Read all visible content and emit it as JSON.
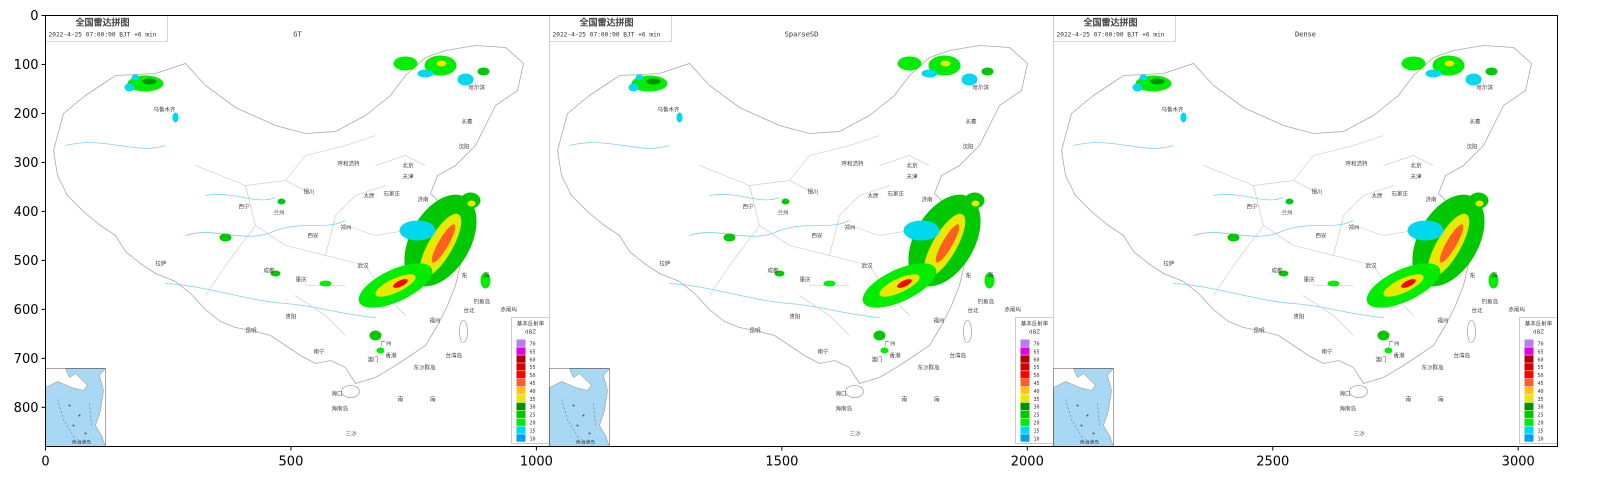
{
  "axes": {
    "x_ticks": [
      "0",
      "500",
      "1000",
      "1500",
      "2000",
      "2500",
      "3000"
    ],
    "y_ticks": [
      "0",
      "100",
      "200",
      "300",
      "400",
      "500",
      "600",
      "700",
      "800"
    ]
  },
  "shared": {
    "map_title": "全国雷达拼图",
    "timestamp": "2022-4-25 07:00:00 BJT +6 min",
    "legend_title_line1": "基本反射率",
    "legend_title_line2": "dBZ",
    "legend_values": [
      "70",
      "65",
      "60",
      "55",
      "50",
      "45",
      "40",
      "35",
      "30",
      "25",
      "20",
      "15",
      "10"
    ],
    "legend_colors": [
      "#b57ef0",
      "#e000e0",
      "#b00000",
      "#d40000",
      "#ff0000",
      "#ff6020",
      "#ffc800",
      "#e8e800",
      "#009000",
      "#00c800",
      "#00ec00",
      "#00d8f0",
      "#00a0f0"
    ],
    "inset_label": "南海诸岛",
    "place_labels": {
      "wulumuqi": "乌鲁木齐",
      "haerbin": "哈尔滨",
      "changchun": "长春",
      "shenyang": "沈阳",
      "huhehaote": "呼和浩特",
      "beijing": "北京",
      "tianjin": "天津",
      "shijiazhuang": "石家庄",
      "taiyuan": "太原",
      "yinchuan": "银川",
      "xining": "西宁",
      "lanzhou": "兰州",
      "jinan": "济南",
      "xian": "西安",
      "zhengzhou": "郑州",
      "lasa": "拉萨",
      "chengdu": "成都",
      "chongqing": "重庆",
      "wuhan": "武汉",
      "guiyang": "贵阳",
      "kunming": "昆明",
      "nanning": "南宁",
      "fuzhou": "福州",
      "taibei": "台北",
      "guangzhou": "广州",
      "aomen": "澳门",
      "xianggang": "香港",
      "haikou": "海口",
      "hainandao": "海南岛",
      "taiwandao": "台湾岛",
      "dongshaqundao": "东沙群岛",
      "diaoyudao": "钓鱼岛",
      "chiweiyu": "赤尾屿",
      "dong": "东",
      "hai": "海",
      "nan": "南",
      "sansha": "三沙"
    }
  },
  "panels": [
    {
      "label": "GT"
    },
    {
      "label": "SparseSD"
    },
    {
      "label": "Dense"
    }
  ]
}
